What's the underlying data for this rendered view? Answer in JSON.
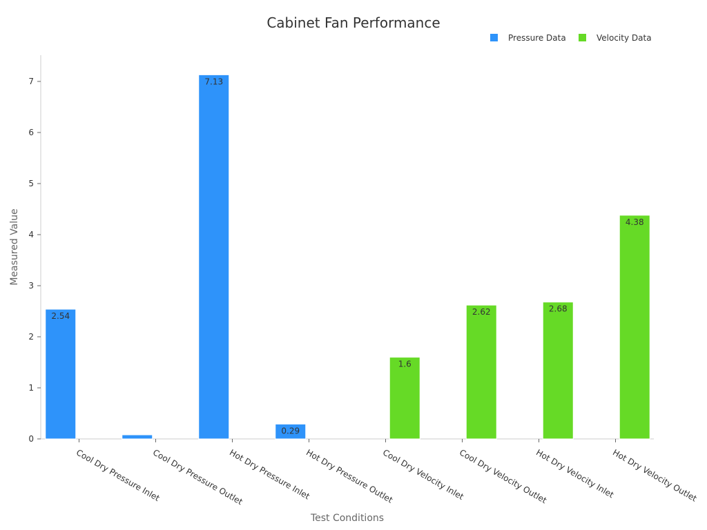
{
  "chart_data": {
    "type": "bar",
    "title": "Cabinet Fan Performance",
    "xlabel": "Test Conditions",
    "ylabel": "Measured Value",
    "ylim": [
      0,
      7.5
    ],
    "yticks": [
      0,
      1,
      2,
      3,
      4,
      5,
      6,
      7
    ],
    "grid": false,
    "legend_position": "top-right",
    "categories": [
      "Cool Dry Pressure Inlet",
      "Cool Dry Pressure Outlet",
      "Hot Dry Pressure Inlet",
      "Hot Dry Pressure Outlet",
      "Cool Dry Velocity Inlet",
      "Cool Dry Velocity Outlet",
      "Hot Dry Velocity Inlet",
      "Hot Dry Velocity Outlet"
    ],
    "series": [
      {
        "name": "Pressure Data",
        "color": "#2e93fa",
        "values": [
          2.54,
          0.08,
          7.13,
          0.29,
          null,
          null,
          null,
          null
        ],
        "labels": [
          "2.54",
          "",
          "7.13",
          "0.29",
          "",
          "",
          "",
          ""
        ]
      },
      {
        "name": "Velocity Data",
        "color": "#66da26",
        "values": [
          null,
          null,
          null,
          null,
          1.6,
          2.62,
          2.68,
          4.38
        ],
        "labels": [
          "",
          "",
          "",
          "",
          "1.6",
          "2.62",
          "2.68",
          "4.38"
        ]
      }
    ]
  }
}
